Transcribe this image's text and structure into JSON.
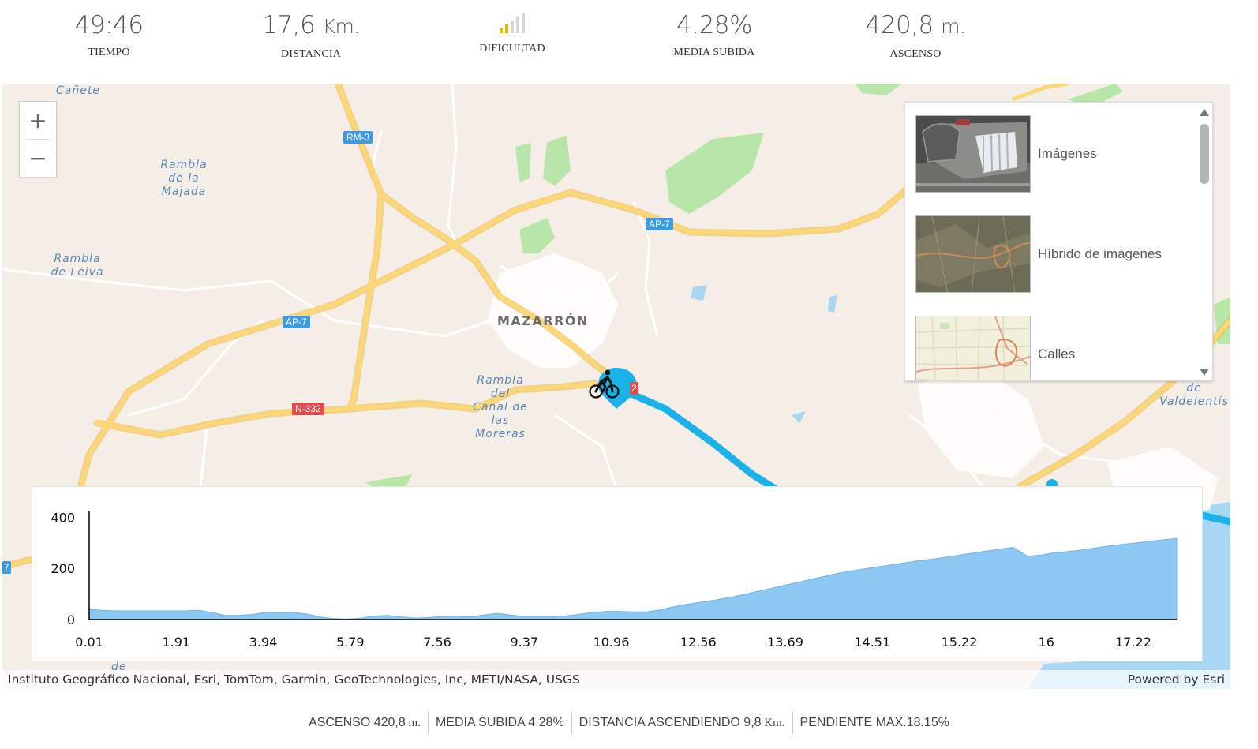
{
  "stats": {
    "tiempo": {
      "value": "49:46",
      "label": "TIEMPO"
    },
    "distancia": {
      "value": "17,6",
      "unit": "Km.",
      "label": "DISTANCIA"
    },
    "dificultad": {
      "label": "DIFICULTAD",
      "level": 2,
      "max": 5,
      "active_color": "#e6b800",
      "inactive_color": "#d6d6d6"
    },
    "media_subida": {
      "value": "4.28%",
      "label": "MEDIA SUBIDA"
    },
    "ascenso": {
      "value": "420,8",
      "unit": "m.",
      "label": "ASCENSO"
    }
  },
  "map": {
    "labels": {
      "canete": "Cañete",
      "rambla_majada": "Rambla de la Majada",
      "rambla_leiva": "Rambla de Leiva",
      "mazarron": "MAZARRÓN",
      "rambla_canal": "Rambla del Canal de las Moreras",
      "valdelentis": "de Valdelentis",
      "de_bottom": "de"
    },
    "shields": {
      "rm3": "RM-3",
      "ap7_a": "AP-7",
      "ap7_b": "AP-7",
      "n332": "N-332",
      "p2": "2",
      "p7": "7"
    },
    "zoom": {
      "in_icon": "plus-icon",
      "out_icon": "minus-icon"
    },
    "basemaps": [
      {
        "title": "Imágenes"
      },
      {
        "title": "Híbrido de imágenes"
      },
      {
        "title": "Calles"
      }
    ],
    "attribution": "Instituto Geográfico Nacional, Esri, TomTom, Garmin, GeoTechnologies, Inc, METI/NASA, USGS",
    "powered_by": "Powered by Esri",
    "colors": {
      "route": "#1ab2e8",
      "highway": "#f5c95c",
      "water": "#a7d7f2",
      "park": "#b8e6a8"
    }
  },
  "chart_data": {
    "type": "area",
    "x_tick_labels": [
      "0.01",
      "1.91",
      "3.94",
      "5.79",
      "7.56",
      "9.37",
      "10.96",
      "12.56",
      "13.69",
      "14.51",
      "15.22",
      "16",
      "17.22"
    ],
    "y_tick_labels": [
      "400",
      "200",
      "0"
    ],
    "ylim": [
      0,
      420
    ],
    "elevation": [
      40,
      36,
      34,
      34,
      34,
      34,
      34,
      34,
      36,
      28,
      16,
      16,
      20,
      28,
      28,
      28,
      22,
      10,
      4,
      2,
      6,
      14,
      16,
      10,
      6,
      8,
      12,
      14,
      10,
      18,
      24,
      18,
      12,
      12,
      12,
      14,
      20,
      28,
      32,
      32,
      30,
      30,
      38,
      50,
      60,
      68,
      76,
      86,
      96,
      108,
      120,
      132,
      144,
      156,
      168,
      180,
      190,
      198,
      206,
      214,
      222,
      230,
      236,
      244,
      252,
      260,
      268,
      276,
      282,
      248,
      252,
      262,
      266,
      272,
      280,
      288,
      294,
      300,
      306,
      312,
      318
    ],
    "fill_color": "#8cc8f2"
  },
  "footer": [
    {
      "label": "ASCENSO 420,8",
      "unit": "m."
    },
    {
      "label": "MEDIA SUBIDA 4.28%",
      "unit": ""
    },
    {
      "label": "DISTANCIA ASCENDIENDO 9,8",
      "unit": "Km."
    },
    {
      "label": "PENDIENTE MAX.18.15%",
      "unit": ""
    }
  ]
}
